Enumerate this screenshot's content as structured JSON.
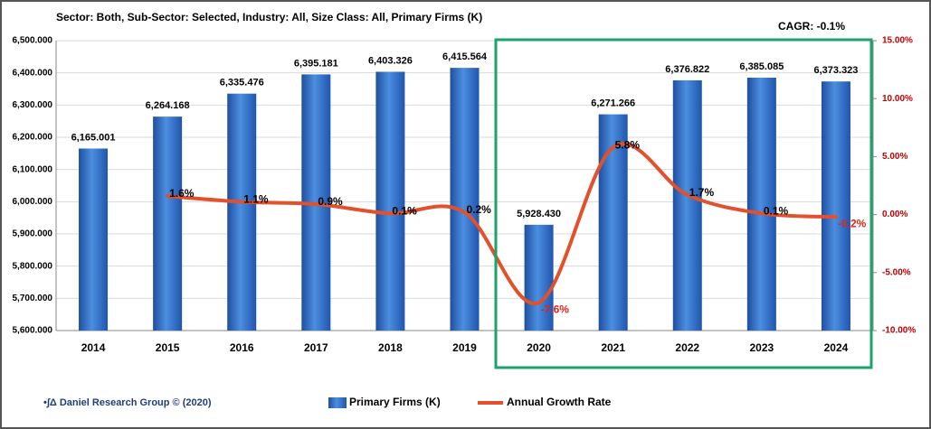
{
  "chart_data": {
    "type": "bar",
    "title": "Sector: Both, Sub-Sector: Selected, Industry: All, Size Class: All, Primary Firms (K)",
    "annotations": [
      "CAGR: -0.1%",
      "•∫Δ Daniel Research Group © (2020)"
    ],
    "categories": [
      "2014",
      "2015",
      "2016",
      "2017",
      "2018",
      "2019",
      "2020",
      "2021",
      "2022",
      "2023",
      "2024"
    ],
    "series": [
      {
        "name": "Primary Firms (K)",
        "type": "bar",
        "color": "#2e6cc4",
        "values": [
          6165.001,
          6264.168,
          6335.476,
          6395.181,
          6403.326,
          6415.564,
          5928.43,
          6271.266,
          6376.822,
          6385.085,
          6373.323
        ],
        "value_labels": [
          "6,165.001",
          "6,264.168",
          "6,335.476",
          "6,395.181",
          "6,403.326",
          "6,415.564",
          "5,928.430",
          "6,271.266",
          "6,376.822",
          "6,385.085",
          "6,373.323"
        ]
      },
      {
        "name": "Annual Growth Rate",
        "type": "line",
        "axis": "y2",
        "color": "#e2502c",
        "values": [
          null,
          1.6,
          1.1,
          0.9,
          0.1,
          0.2,
          -7.6,
          5.8,
          1.7,
          0.1,
          -0.2
        ],
        "value_labels": [
          null,
          "1.6%",
          "1.1%",
          "0.9%",
          "0.1%",
          "0.2%",
          "-7.6%",
          "5.8%",
          "1.7%",
          "0.1%",
          "-0.2%"
        ]
      }
    ],
    "ylim": [
      5600,
      6500
    ],
    "yticks": [
      {
        "value": 5600,
        "label": "5,600.000"
      },
      {
        "value": 5700,
        "label": "5,700.000"
      },
      {
        "value": 5800,
        "label": "5,800.000"
      },
      {
        "value": 5900,
        "label": "5,900.000"
      },
      {
        "value": 6000,
        "label": "6,000.000"
      },
      {
        "value": 6100,
        "label": "6,100.000"
      },
      {
        "value": 6200,
        "label": "6,200.000"
      },
      {
        "value": 6300,
        "label": "6,300.000"
      },
      {
        "value": 6400,
        "label": "6,400.000"
      },
      {
        "value": 6500,
        "label": "6,500.000"
      }
    ],
    "y2lim": [
      -10,
      15
    ],
    "y2ticks": [
      {
        "value": -10,
        "label": "-10.00%"
      },
      {
        "value": -5,
        "label": "-5.00%"
      },
      {
        "value": 0,
        "label": "0.00%"
      },
      {
        "value": 5,
        "label": "5.00%"
      },
      {
        "value": 10,
        "label": "10.00%"
      },
      {
        "value": 15,
        "label": "15.00%"
      }
    ],
    "grid": true,
    "legend": "bottom"
  }
}
